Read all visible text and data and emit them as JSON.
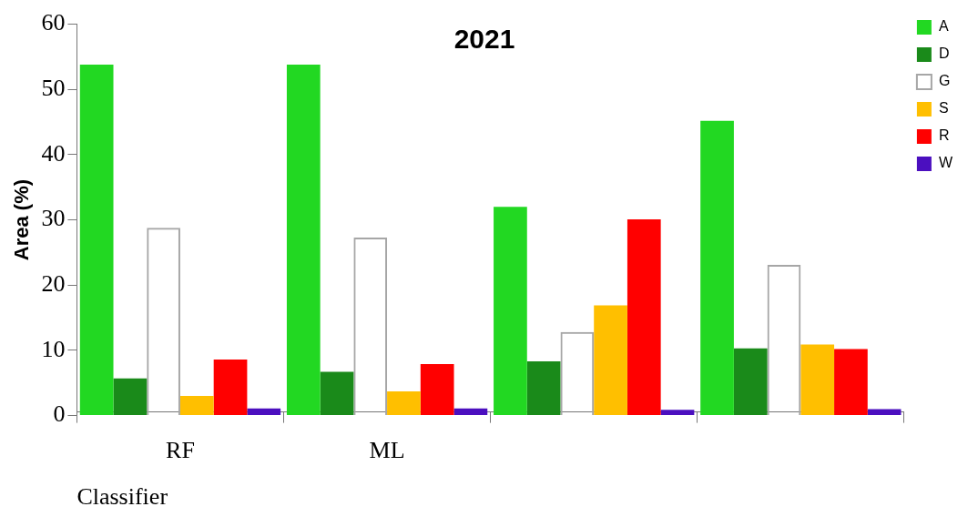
{
  "chart_data": {
    "type": "bar",
    "title": "2021",
    "xlabel": "Classifier",
    "ylabel": "Area (%)",
    "categories": [
      "RF",
      "ML",
      null,
      null
    ],
    "series": [
      {
        "name": "A",
        "color": "#22d822",
        "values": [
          53.8,
          53.8,
          32,
          45.2
        ]
      },
      {
        "name": "D",
        "color": "#1a8a1a",
        "values": [
          5.7,
          6.7,
          8.3,
          10.3
        ]
      },
      {
        "name": "G",
        "color": "#a6a6a6",
        "values": [
          28.8,
          27.3,
          12.8,
          23.1
        ]
      },
      {
        "name": "S",
        "color": "#ffbf00",
        "values": [
          3,
          3.7,
          16.9,
          10.9
        ]
      },
      {
        "name": "R",
        "color": "#ff0000",
        "values": [
          8.6,
          7.9,
          30.1,
          10.2
        ]
      },
      {
        "name": "W",
        "color": "#4b0fbf",
        "values": [
          1.1,
          1.1,
          0.9,
          1
        ]
      }
    ],
    "ylim": [
      0,
      60
    ],
    "yticks": [
      0,
      10,
      20,
      30,
      40,
      50,
      60
    ],
    "grid": false,
    "legend": "top right"
  }
}
